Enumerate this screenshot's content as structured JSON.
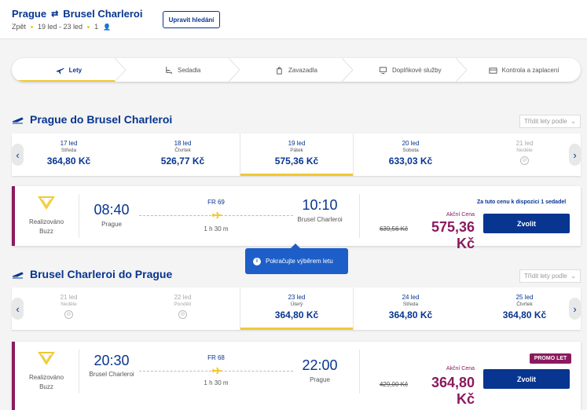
{
  "header": {
    "origin": "Prague",
    "destination": "Brusel Charleroi",
    "trip_type": "Zpět",
    "dates": "19 led - 23 led",
    "passengers": "1",
    "edit_label": "Upravit hledání"
  },
  "steps": [
    {
      "label": "Lety",
      "icon": "plane-icon"
    },
    {
      "label": "Sedadla",
      "icon": "seat-icon"
    },
    {
      "label": "Zavazadla",
      "icon": "luggage-icon"
    },
    {
      "label": "Doplňkové služby",
      "icon": "monitor-icon"
    },
    {
      "label": "Kontrola a zaplacení",
      "icon": "card-icon"
    }
  ],
  "outbound": {
    "title": "Prague do Brusel Charleroi",
    "sort_label": "Třídit lety podle",
    "dates": [
      {
        "day": "17 led",
        "weekday": "Středa",
        "price": "364,80 Kč"
      },
      {
        "day": "18 led",
        "weekday": "Čtvrtek",
        "price": "526,77 Kč"
      },
      {
        "day": "19 led",
        "weekday": "Pátek",
        "price": "575,36 Kč"
      },
      {
        "day": "20 led",
        "weekday": "Sobota",
        "price": "633,03 Kč"
      },
      {
        "day": "21 led",
        "weekday": "Neděle",
        "price": ""
      }
    ],
    "flight": {
      "operated_by": "Realizováno Buzz",
      "depart_time": "08:40",
      "depart_place": "Prague",
      "arrive_time": "10:10",
      "arrive_place": "Brusel Charleroi",
      "flight_no": "FR 69",
      "duration": "1 h 30 m",
      "seats_note": "Za tuto cenu k dispozici 1 sedadel",
      "fare_type": "Akční Cena",
      "old_price": "639,56 Kč",
      "price": "575,36 Kč",
      "select_label": "Zvolit"
    }
  },
  "tooltip": {
    "text": "Pokračujte výběrem letu"
  },
  "inbound": {
    "title": "Brusel Charleroi do Prague",
    "sort_label": "Třídit lety podle",
    "dates": [
      {
        "day": "21 led",
        "weekday": "Neděle",
        "price": ""
      },
      {
        "day": "22 led",
        "weekday": "Pondělí",
        "price": ""
      },
      {
        "day": "23 led",
        "weekday": "Úterý",
        "price": "364,80 Kč"
      },
      {
        "day": "24 led",
        "weekday": "Středa",
        "price": "364,80 Kč"
      },
      {
        "day": "25 led",
        "weekday": "Čtvrtek",
        "price": "364,80 Kč"
      }
    ],
    "flight": {
      "operated_by": "Realizováno Buzz",
      "depart_time": "20:30",
      "depart_place": "Brusel Charleroi",
      "arrive_time": "22:00",
      "arrive_place": "Prague",
      "flight_no": "FR 68",
      "duration": "1 h 30 m",
      "badge": "PROMO LET",
      "fare_type": "Akční Cena",
      "old_price": "429,00 Kč",
      "price": "364,80 Kč",
      "select_label": "Zvolit"
    }
  },
  "colors": {
    "brand": "#073590",
    "accent": "#f1c933",
    "promo": "#8a1a5e",
    "info": "#1d5ec8"
  }
}
